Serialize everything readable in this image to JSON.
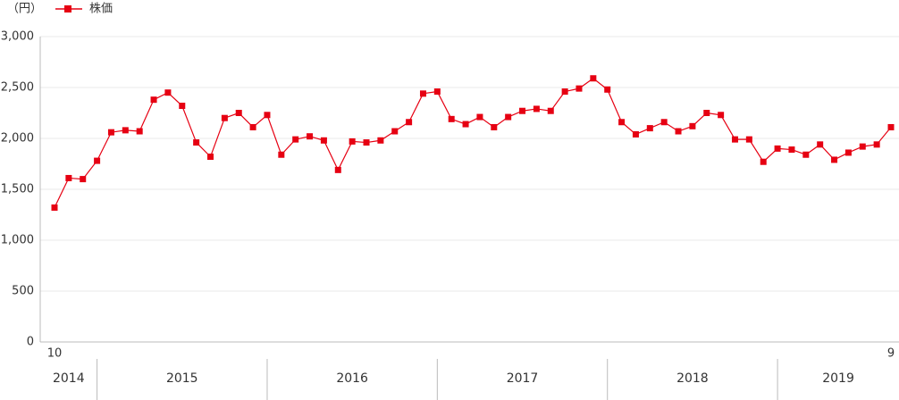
{
  "chart_data": {
    "type": "line",
    "unit_label": "（円）",
    "categories": [
      "10",
      null,
      null,
      null,
      null,
      null,
      null,
      null,
      null,
      null,
      null,
      null,
      null,
      null,
      null,
      null,
      null,
      null,
      null,
      null,
      null,
      null,
      null,
      null,
      null,
      null,
      null,
      null,
      null,
      null,
      null,
      null,
      null,
      null,
      null,
      null,
      null,
      null,
      null,
      null,
      null,
      null,
      null,
      null,
      null,
      null,
      null,
      null,
      null,
      null,
      null,
      null,
      null,
      null,
      null,
      null,
      null,
      null,
      null,
      "9"
    ],
    "years": [
      "2014",
      "2015",
      "2016",
      "2017",
      "2018",
      "2019"
    ],
    "series": [
      {
        "name": "株価",
        "color": "#e60012",
        "values": [
          1320,
          1610,
          1600,
          1780,
          2060,
          2080,
          2070,
          2380,
          2450,
          2320,
          1960,
          1820,
          2200,
          2250,
          2110,
          2230,
          1840,
          1990,
          2020,
          1980,
          1690,
          1970,
          1960,
          1980,
          2070,
          2160,
          2440,
          2460,
          2190,
          2140,
          2210,
          2110,
          2210,
          2270,
          2290,
          2270,
          2460,
          2490,
          2590,
          2480,
          2160,
          2040,
          2100,
          2160,
          2070,
          2120,
          2250,
          2230,
          1990,
          1990,
          1770,
          1900,
          1890,
          1840,
          1940,
          1790,
          1860,
          1920,
          1940,
          2110
        ]
      }
    ],
    "ylim": [
      0,
      3000
    ],
    "yticks": [
      0,
      500,
      {
        "value": 1000,
        "label": "1,000"
      },
      {
        "value": 1500,
        "label": "1,500"
      },
      {
        "value": 2000,
        "label": "2,000"
      },
      {
        "value": 2500,
        "label": "2,500"
      },
      {
        "value": 3000,
        "label": "3,000"
      }
    ],
    "grid": true
  }
}
